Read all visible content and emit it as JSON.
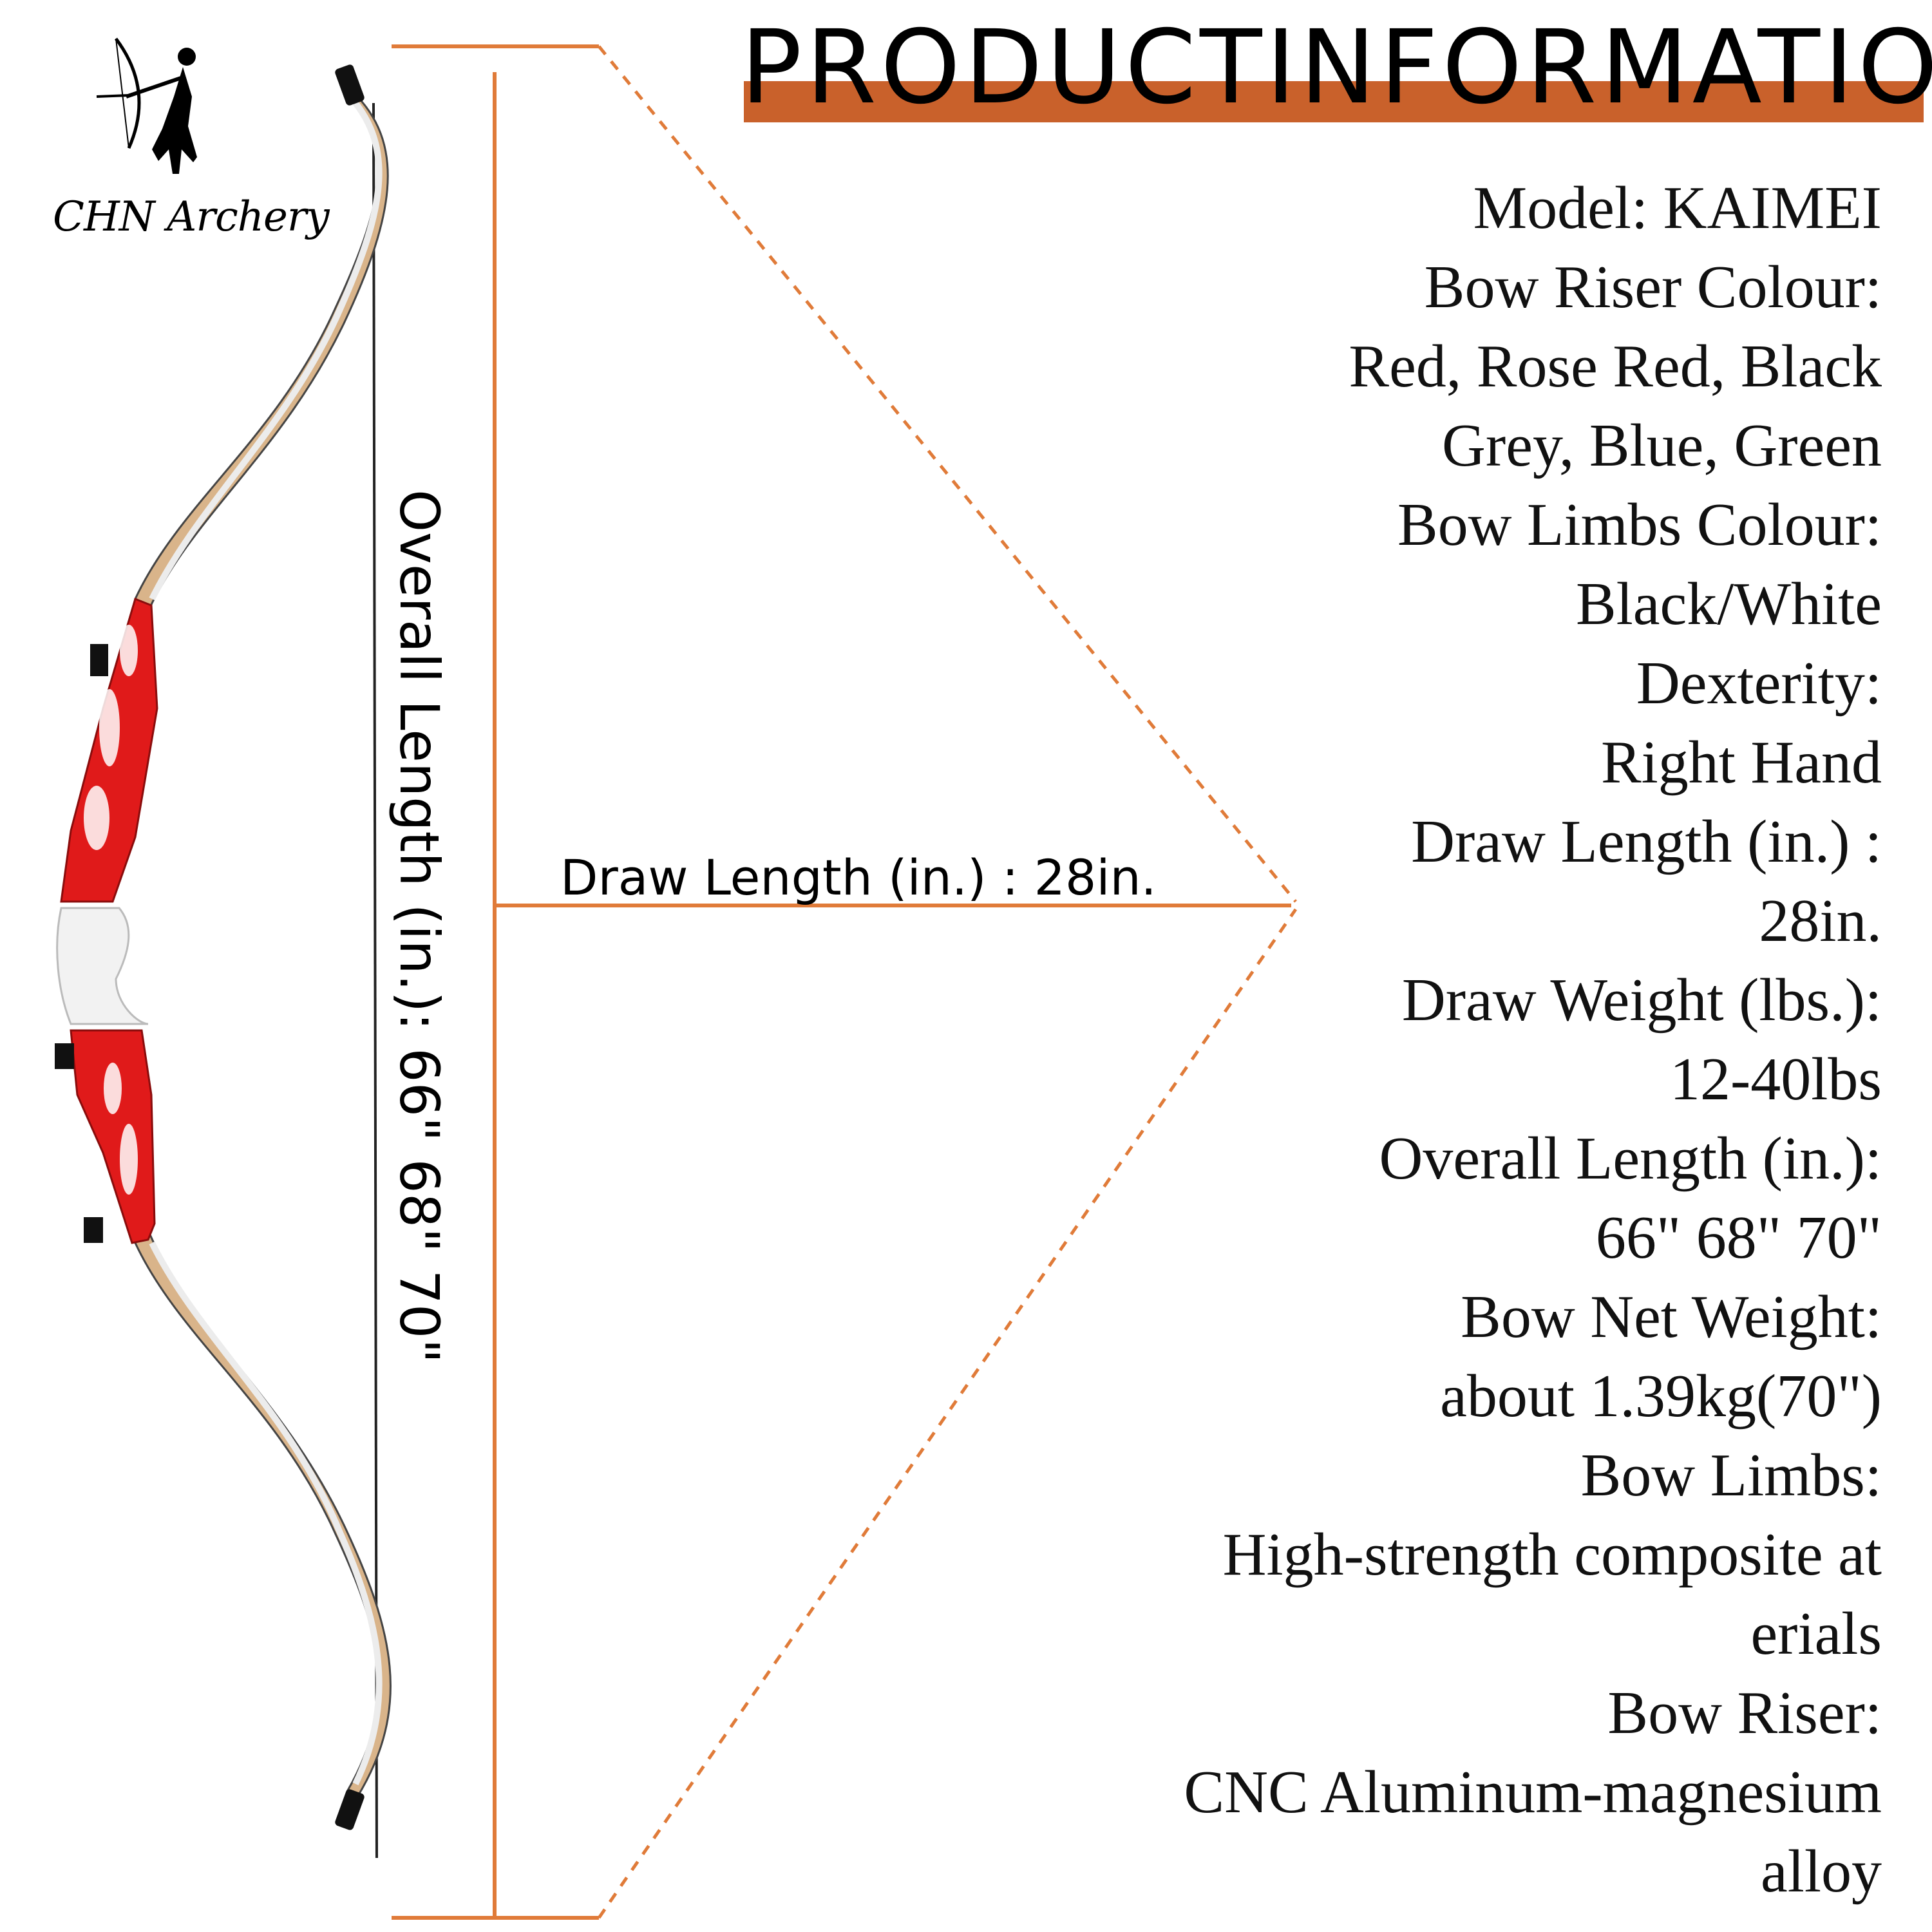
{
  "brand": {
    "name": "CHN Archery"
  },
  "header": {
    "title": "PRODUCTINFORMATION",
    "accent_color": "#c9612b"
  },
  "diagram": {
    "draw_length_label": "Draw Length (in.) : 28in.",
    "overall_length_label": "Overall Length (in.): 66\" 68\" 70\"",
    "line_color": "#e07b39",
    "riser_color": "#e01a1a"
  },
  "specs": [
    "Model: KAIMEI",
    "Bow Riser Colour:",
    "Red, Rose Red, Black",
    "Grey, Blue, Green",
    "Bow Limbs Colour:",
    "Black/White",
    "Dexterity:",
    "Right Hand",
    "Draw Length (in.) :",
    "28in.",
    "Draw Weight (lbs.):",
    "12-40lbs",
    "Overall Length (in.):",
    "66\" 68\" 70\"",
    "Bow Net Weight:",
    "about 1.39kg(70\")",
    "Bow Limbs:",
    "High-strength composite at",
    "erials",
    "Bow Riser:",
    "CNC Aluminum-magnesium",
    "alloy"
  ]
}
